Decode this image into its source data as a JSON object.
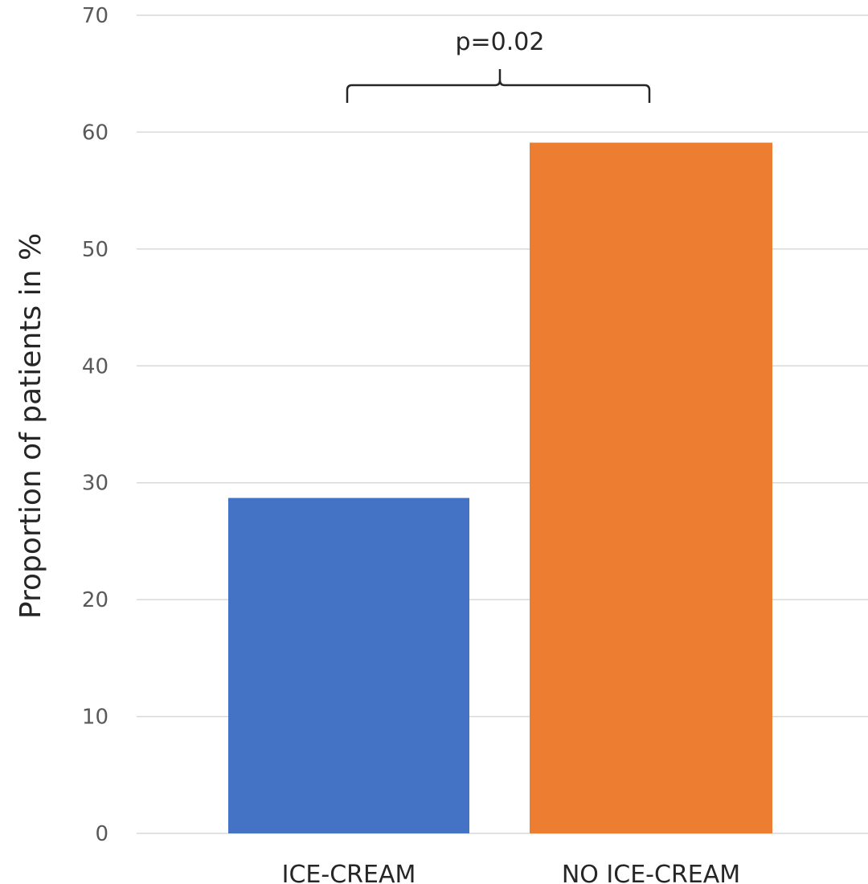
{
  "chart_data": {
    "type": "bar",
    "title": "",
    "xlabel": "",
    "ylabel": "Proportion of patients in %",
    "ylim": [
      0,
      70
    ],
    "yticks": [
      0,
      10,
      20,
      30,
      40,
      50,
      60,
      70
    ],
    "grid": true,
    "categories": [
      "ICE-CREAM",
      "NO ICE-CREAM"
    ],
    "values": [
      28.7,
      59.1
    ],
    "colors": [
      "#4472C4",
      "#ED7D31"
    ],
    "annotation": {
      "text": "p=0.02",
      "type": "significance-bracket",
      "between": [
        "ICE-CREAM",
        "NO ICE-CREAM"
      ]
    }
  }
}
